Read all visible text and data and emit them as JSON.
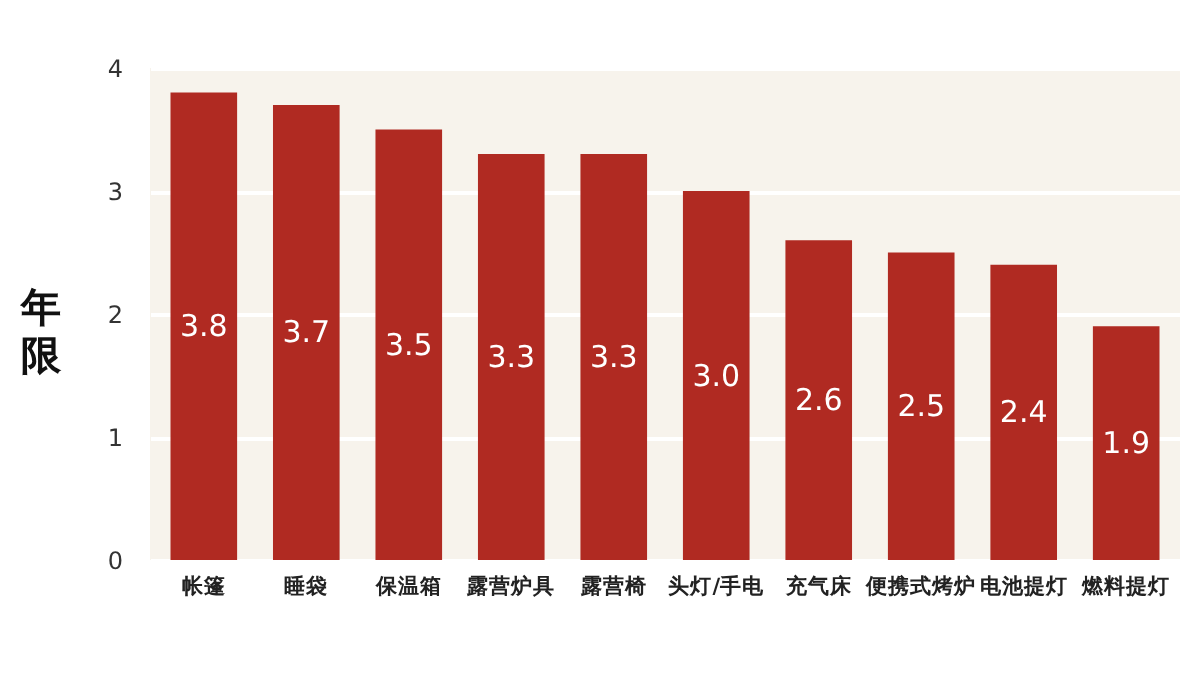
{
  "chart_data": {
    "type": "bar",
    "ylabel": "年限",
    "categories": [
      "帐篷",
      "睡袋",
      "保温箱",
      "露营炉具",
      "露营椅",
      "头灯/手电",
      "充气床",
      "便携式烤炉",
      "电池提灯",
      "燃料提灯"
    ],
    "values": [
      3.8,
      3.7,
      3.5,
      3.3,
      3.3,
      3.0,
      2.6,
      2.5,
      2.4,
      1.9
    ],
    "value_labels": [
      "3.8",
      "3.7",
      "3.5",
      "3.3",
      "3.3",
      "3.0",
      "2.6",
      "2.5",
      "2.4",
      "1.9"
    ],
    "color": "#b02a22",
    "ylim": [
      0,
      4
    ],
    "yticks": [
      0,
      1,
      2,
      3,
      4
    ],
    "grid": "y"
  }
}
